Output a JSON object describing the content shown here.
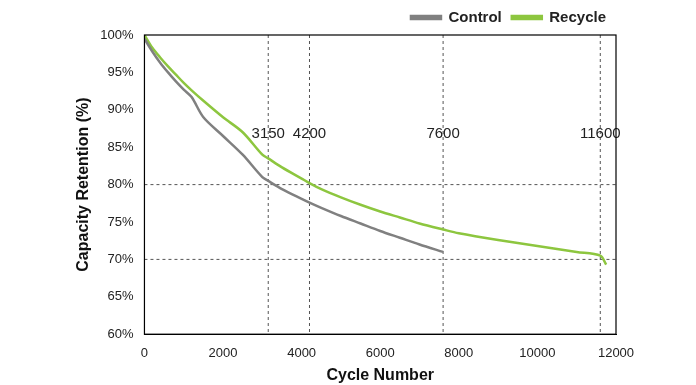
{
  "chart_data": {
    "type": "line",
    "x_label": "Cycle Number",
    "y_label": "Capacity Retention (%)",
    "x": [
      0,
      200,
      400,
      600,
      800,
      1000,
      1200,
      1500,
      2000,
      2500,
      3000,
      3150,
      3500,
      4000,
      4200,
      4500,
      5000,
      5500,
      6000,
      6500,
      7000,
      7600,
      8000,
      9000,
      10000,
      11000,
      11600,
      11750
    ],
    "series": [
      {
        "name": "Control",
        "color": "#808080",
        "values": [
          99.5,
          97.8,
          96.3,
          95,
          93.8,
          92.7,
          91.7,
          89,
          86.5,
          84,
          81,
          80.5,
          79.4,
          78.1,
          77.6,
          76.9,
          75.8,
          74.8,
          73.8,
          72.9,
          72,
          71,
          null,
          null,
          null,
          null,
          null,
          null
        ]
      },
      {
        "name": "Recycle",
        "color": "#8dc63f",
        "values": [
          100,
          98.3,
          97,
          95.8,
          94.7,
          93.6,
          92.6,
          91.2,
          89,
          87,
          84,
          83.5,
          82.3,
          80.8,
          80.2,
          79.4,
          78.3,
          77.3,
          76.4,
          75.6,
          74.8,
          74,
          73.5,
          72.6,
          71.8,
          71,
          70.5,
          69.3
        ]
      }
    ],
    "annotations": [
      {
        "x": 3150,
        "label": "3150"
      },
      {
        "x": 4200,
        "label": "4200"
      },
      {
        "x": 7600,
        "label": "7600"
      },
      {
        "x": 11600,
        "label": "11600"
      },
      {
        "y": 80
      },
      {
        "y": 70
      }
    ],
    "xlim": [
      0,
      12000
    ],
    "xticks": [
      0,
      2000,
      4000,
      6000,
      8000,
      10000,
      12000
    ],
    "ylim": [
      60,
      100
    ],
    "yticks": [
      {
        "value": 60,
        "label": "60%"
      },
      {
        "value": 65,
        "label": "65%"
      },
      {
        "value": 70,
        "label": "70%"
      },
      {
        "value": 75,
        "label": "75%"
      },
      {
        "value": 80,
        "label": "80%"
      },
      {
        "value": 85,
        "label": "85%"
      },
      {
        "value": 90,
        "label": "90%"
      },
      {
        "value": 95,
        "label": "95%"
      },
      {
        "value": 100,
        "label": "100%"
      }
    ],
    "grid": false,
    "legend": "upper right"
  }
}
